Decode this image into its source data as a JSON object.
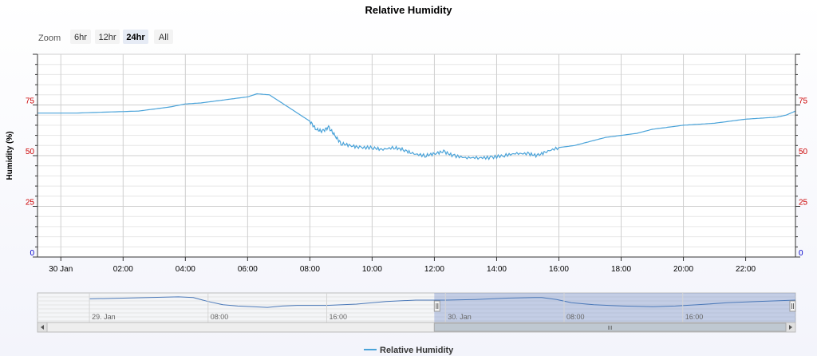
{
  "chart_data": {
    "type": "line",
    "title": "Relative Humidity",
    "ylabel": "Humidity (%)",
    "ylim": [
      0,
      100
    ],
    "yticks": [
      0,
      25,
      50,
      75
    ],
    "xlabels": [
      "30 Jan",
      "02:00",
      "04:00",
      "06:00",
      "08:00",
      "10:00",
      "12:00",
      "14:00",
      "16:00",
      "18:00",
      "20:00",
      "22:00"
    ],
    "x_range_hours": [
      -0.75,
      23.6
    ],
    "grid": true,
    "legend": "bottom-center",
    "series": [
      {
        "name": "Relative Humidity",
        "color": "#4aa3d9",
        "points": [
          [
            -0.75,
            71
          ],
          [
            0.5,
            71
          ],
          [
            1.5,
            71.5
          ],
          [
            2.5,
            72
          ],
          [
            3.0,
            73
          ],
          [
            3.5,
            74
          ],
          [
            4.0,
            75.5
          ],
          [
            4.5,
            76
          ],
          [
            5.0,
            77
          ],
          [
            5.5,
            78
          ],
          [
            6.0,
            79
          ],
          [
            6.3,
            80.5
          ],
          [
            6.7,
            80
          ],
          [
            7.0,
            77
          ],
          [
            7.3,
            74
          ],
          [
            7.7,
            70
          ],
          [
            8.0,
            67
          ],
          [
            8.2,
            63
          ],
          [
            8.4,
            62
          ],
          [
            8.6,
            64
          ],
          [
            8.8,
            60
          ],
          [
            9.0,
            56
          ],
          [
            9.3,
            55
          ],
          [
            9.6,
            54
          ],
          [
            10.0,
            54
          ],
          [
            10.3,
            53
          ],
          [
            10.7,
            54
          ],
          [
            11.0,
            53
          ],
          [
            11.3,
            51
          ],
          [
            11.7,
            50
          ],
          [
            12.0,
            51
          ],
          [
            12.3,
            52
          ],
          [
            12.6,
            50
          ],
          [
            13.0,
            49
          ],
          [
            13.4,
            49
          ],
          [
            13.8,
            49
          ],
          [
            14.2,
            50
          ],
          [
            14.6,
            51
          ],
          [
            15.0,
            51
          ],
          [
            15.3,
            50
          ],
          [
            15.6,
            52
          ],
          [
            16.0,
            54
          ],
          [
            16.5,
            55
          ],
          [
            17.0,
            57
          ],
          [
            17.5,
            59
          ],
          [
            18.0,
            60
          ],
          [
            18.5,
            61
          ],
          [
            19.0,
            63
          ],
          [
            19.5,
            64
          ],
          [
            20.0,
            65
          ],
          [
            20.5,
            65.5
          ],
          [
            21.0,
            66
          ],
          [
            21.5,
            67
          ],
          [
            22.0,
            68
          ],
          [
            22.5,
            68.5
          ],
          [
            23.0,
            69
          ],
          [
            23.3,
            70
          ],
          [
            23.6,
            72
          ]
        ]
      }
    ]
  },
  "zoom": {
    "label": "Zoom",
    "buttons": [
      "6hr",
      "12hr",
      "24hr",
      "All"
    ],
    "selected": "24hr"
  },
  "navigator": {
    "labels": [
      "29. Jan",
      "08:00",
      "16:00",
      "30. Jan",
      "08:00",
      "16:00"
    ],
    "series": [
      [
        -24,
        61
      ],
      [
        -22,
        62
      ],
      [
        -20,
        63
      ],
      [
        -18,
        64
      ],
      [
        -17,
        63
      ],
      [
        -16,
        57
      ],
      [
        -15,
        52
      ],
      [
        -14,
        50
      ],
      [
        -13,
        49
      ],
      [
        -12,
        48
      ],
      [
        -11,
        50
      ],
      [
        -10,
        51
      ],
      [
        -8,
        51
      ],
      [
        -6,
        53
      ],
      [
        -4,
        57
      ],
      [
        -2,
        59
      ],
      [
        0,
        59
      ],
      [
        2,
        60
      ],
      [
        4,
        62
      ],
      [
        6,
        63
      ],
      [
        6.5,
        63
      ],
      [
        7.5,
        60
      ],
      [
        8.5,
        55
      ],
      [
        10,
        52
      ],
      [
        12,
        50
      ],
      [
        14,
        49
      ],
      [
        15.5,
        50
      ],
      [
        17,
        52
      ],
      [
        19,
        55
      ],
      [
        21,
        57
      ],
      [
        23.6,
        59
      ]
    ],
    "selection_hours": [
      -0.75,
      23.6
    ],
    "scroll_grip": "III"
  }
}
